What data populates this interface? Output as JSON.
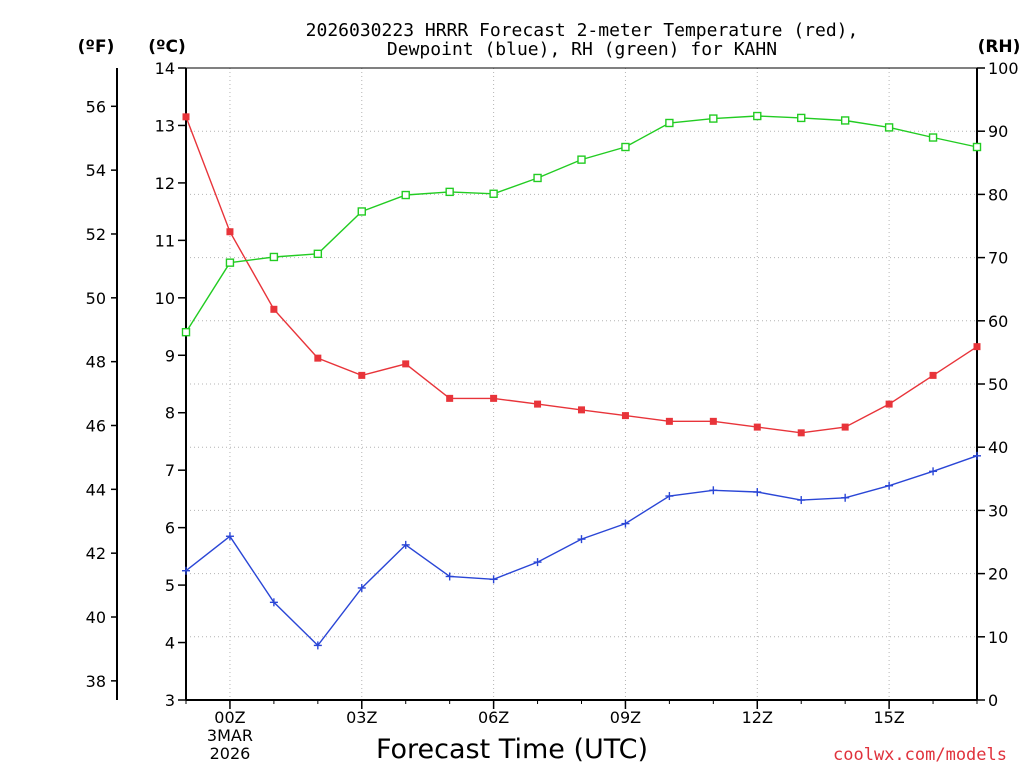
{
  "chart_data": {
    "type": "line",
    "title_line1": "2026030223 HRRR Forecast 2-meter Temperature (red),",
    "title_line2": "Dewpoint (blue), RH (green) for KAHN",
    "xlabel": "Forecast Time (UTC)",
    "watermark": "coolwx.com/models",
    "left_outer_axis_label": "(ºF)",
    "left_axis_label": "(ºC)",
    "right_axis_label": "(RH)",
    "x_hours": [
      -1,
      0,
      1,
      2,
      3,
      4,
      5,
      6,
      7,
      8,
      9,
      10,
      11,
      12,
      13,
      14,
      15,
      16,
      17
    ],
    "x_ticks": [
      {
        "hour": 0,
        "label": "00Z",
        "sub1": "3MAR",
        "sub2": "2026"
      },
      {
        "hour": 3,
        "label": "03Z",
        "sub1": "",
        "sub2": ""
      },
      {
        "hour": 6,
        "label": "06Z",
        "sub1": "",
        "sub2": ""
      },
      {
        "hour": 9,
        "label": "09Z",
        "sub1": "",
        "sub2": ""
      },
      {
        "hour": 12,
        "label": "12Z",
        "sub1": "",
        "sub2": ""
      },
      {
        "hour": 15,
        "label": "15Z",
        "sub1": "",
        "sub2": ""
      }
    ],
    "xlim": [
      -1,
      17
    ],
    "celsius_ylim": [
      3,
      14
    ],
    "celsius_ticks": [
      "3",
      "4",
      "5",
      "6",
      "7",
      "8",
      "9",
      "10",
      "11",
      "12",
      "13",
      "14"
    ],
    "fahrenheit_ticks": [
      "38",
      "40",
      "42",
      "44",
      "46",
      "48",
      "50",
      "52",
      "54",
      "56"
    ],
    "rh_ylim": [
      0,
      100
    ],
    "rh_ticks": [
      "0",
      "10",
      "20",
      "30",
      "40",
      "50",
      "60",
      "70",
      "80",
      "90",
      "100"
    ],
    "series": [
      {
        "name": "Temperature",
        "axis": "celsius",
        "color": "#e8343a",
        "marker": "filled-square",
        "values": [
          13.15,
          11.15,
          9.8,
          8.95,
          8.65,
          8.85,
          8.25,
          8.25,
          8.15,
          8.05,
          7.95,
          7.85,
          7.85,
          7.75,
          7.65,
          7.75,
          8.15,
          8.65,
          9.15
        ]
      },
      {
        "name": "Dewpoint",
        "axis": "celsius",
        "color": "#2a46d6",
        "marker": "plus",
        "values": [
          5.25,
          5.85,
          4.7,
          3.95,
          4.95,
          5.7,
          5.15,
          5.1,
          5.4,
          5.8,
          6.07,
          6.55,
          6.65,
          6.62,
          6.48,
          6.52,
          6.73,
          6.98,
          7.25
        ]
      },
      {
        "name": "RH",
        "axis": "rh",
        "color": "#22cc22",
        "marker": "open-square",
        "values": [
          58.2,
          69.2,
          70.1,
          70.6,
          77.3,
          79.9,
          80.4,
          80.1,
          82.6,
          85.5,
          87.5,
          91.3,
          92.0,
          92.4,
          92.1,
          91.7,
          90.6,
          89.0,
          87.5
        ]
      }
    ]
  }
}
